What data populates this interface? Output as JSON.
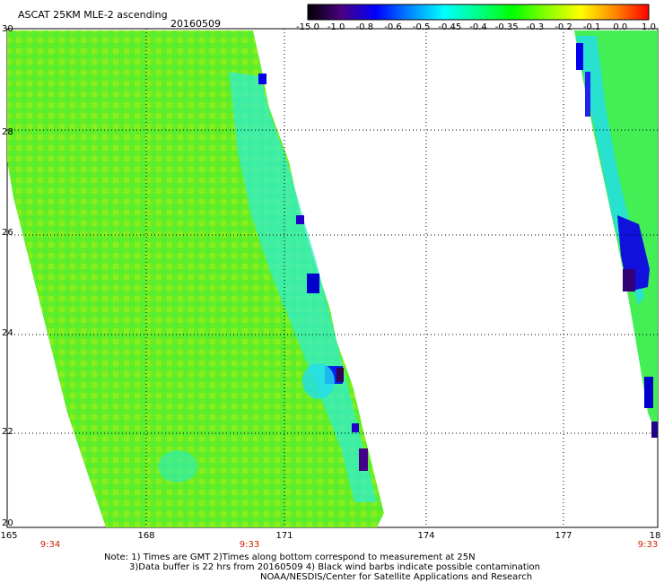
{
  "header": {
    "title": "ASCAT 25KM MLE-2 ascending",
    "date": "20160509"
  },
  "colorbar": {
    "labels": [
      "-15.0",
      "-1.0",
      "-0.8",
      "-0.6",
      "-0.5",
      "-0.45",
      "-0.4",
      "-0.35",
      "-0.3",
      "-0.2",
      "-0.1",
      "0.0",
      "1.0"
    ],
    "colors": [
      "#000000",
      "#4b0082",
      "#0000ff",
      "#0088ff",
      "#00ffff",
      "#00ff88",
      "#00ff00",
      "#88ff00",
      "#ffff00",
      "#ff8800",
      "#ff0000"
    ]
  },
  "axes": {
    "lat_labels": [
      "30",
      "28",
      "26",
      "24",
      "22",
      "20"
    ],
    "lon_labels": [
      "165",
      "168",
      "171",
      "174",
      "177"
    ],
    "lon_end_label": "18",
    "time_labels": [
      "9:34",
      "9:33",
      "9:33"
    ]
  },
  "notes": {
    "line1": "Note: 1) Times are GMT 2)Times along bottom correspond to measurement at 25N",
    "line2": "3)Data buffer is 22 hrs from 20160509 4) Black wind barbs indicate possible contamination",
    "line3": "NOAA/NESDIS/Center for Satellite Applications and Research"
  }
}
